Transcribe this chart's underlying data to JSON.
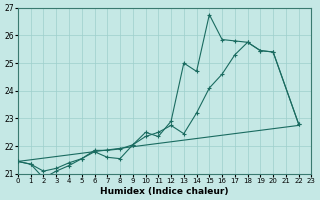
{
  "xlabel": "Humidex (Indice chaleur)",
  "xlim": [
    0,
    23
  ],
  "ylim": [
    21,
    27
  ],
  "yticks": [
    21,
    22,
    23,
    24,
    25,
    26,
    27
  ],
  "xticks": [
    0,
    1,
    2,
    3,
    4,
    5,
    6,
    7,
    8,
    9,
    10,
    11,
    12,
    13,
    14,
    15,
    16,
    17,
    18,
    19,
    20,
    21,
    22,
    23
  ],
  "bg_color": "#c5e8e5",
  "grid_color": "#9ecfcc",
  "line_color": "#1a6b60",
  "line1_x": [
    0,
    1,
    2,
    3,
    4,
    5,
    6,
    7,
    8,
    9,
    10,
    11,
    12,
    13,
    14,
    15,
    16,
    17,
    18,
    19,
    20,
    22
  ],
  "line1_y": [
    21.45,
    21.35,
    20.85,
    21.1,
    21.3,
    21.55,
    21.8,
    21.6,
    21.55,
    22.05,
    22.5,
    22.35,
    22.9,
    25.0,
    24.7,
    26.75,
    25.85,
    25.8,
    25.75,
    25.45,
    25.4,
    22.8
  ],
  "line2_x": [
    0,
    1,
    2,
    3,
    4,
    5,
    6,
    7,
    8,
    9,
    10,
    11,
    12,
    13,
    14,
    15,
    16,
    17,
    18,
    19,
    20,
    22
  ],
  "line2_y": [
    21.45,
    21.35,
    21.1,
    21.2,
    21.4,
    21.55,
    21.85,
    21.85,
    21.9,
    22.05,
    22.35,
    22.5,
    22.75,
    22.45,
    23.2,
    24.1,
    24.6,
    25.3,
    25.75,
    25.45,
    25.4,
    22.8
  ],
  "line3_x": [
    0,
    22
  ],
  "line3_y": [
    21.45,
    22.75
  ]
}
